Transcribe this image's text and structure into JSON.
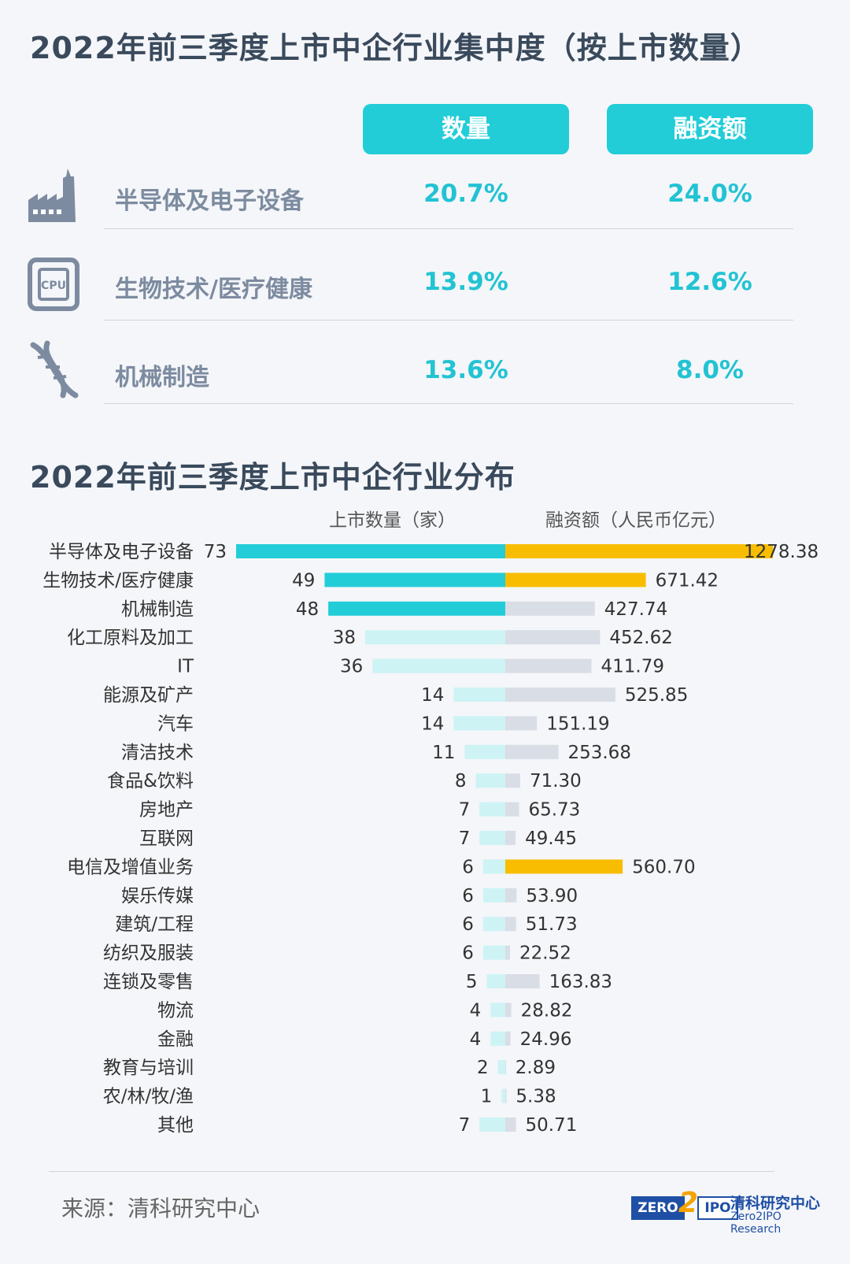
{
  "title1": "2022年前三季度上市中企行业集中度（按上市数量）",
  "title2": "2022年前三季度上市中企行业分布",
  "summary": {
    "head_count": "数量",
    "head_financing": "融资额",
    "rows": [
      {
        "icon": "factory-icon",
        "name": "半导体及电子设备",
        "count_pct": "20.7%",
        "financing_pct": "24.0%"
      },
      {
        "icon": "cpu-chip-icon",
        "name": "生物技术/医疗健康",
        "count_pct": "13.9%",
        "financing_pct": "12.6%"
      },
      {
        "icon": "dna-icon",
        "name": "机械制造",
        "count_pct": "13.6%",
        "financing_pct": "8.0%"
      }
    ]
  },
  "colors": {
    "teal": "#22cdd8",
    "light_teal": "#cdf3f5",
    "gold": "#f8bd00",
    "gray": "#d9dde5",
    "title": "#3a4a5c"
  },
  "chart_data": {
    "type": "bar",
    "layout": "back-to-back horizontal",
    "left_header": "上市数量（家）",
    "right_header": "融资额（人民币亿元）",
    "categories": [
      "半导体及电子设备",
      "生物技术/医疗健康",
      "机械制造",
      "化工原料及加工",
      "IT",
      "能源及矿产",
      "汽车",
      "清洁技术",
      "食品&饮料",
      "房地产",
      "互联网",
      "电信及增值业务",
      "娱乐传媒",
      "建筑/工程",
      "纺织及服装",
      "连锁及零售",
      "物流",
      "金融",
      "教育与培训",
      "农/林/牧/渔",
      "其他"
    ],
    "series": [
      {
        "name": "上市数量（家）",
        "values": [
          73,
          49,
          48,
          38,
          36,
          14,
          14,
          11,
          8,
          7,
          7,
          6,
          6,
          6,
          6,
          5,
          4,
          4,
          2,
          1,
          7
        ],
        "labels": [
          "73",
          "49",
          "48",
          "38",
          "36",
          "14",
          "14",
          "11",
          "8",
          "7",
          "7",
          "6",
          "6",
          "6",
          "6",
          "5",
          "4",
          "4",
          "2",
          "1",
          "7"
        ]
      },
      {
        "name": "融资额（人民币亿元）",
        "values": [
          1278.38,
          671.42,
          427.74,
          452.62,
          411.79,
          525.85,
          151.19,
          253.68,
          71.3,
          65.73,
          49.45,
          560.7,
          53.9,
          51.73,
          22.52,
          163.83,
          28.82,
          24.96,
          2.89,
          5.38,
          50.71
        ],
        "labels": [
          "1278.38",
          "671.42",
          "427.74",
          "452.62",
          "411.79",
          "525.85",
          "151.19",
          "253.68",
          "71.30",
          "65.73",
          "49.45",
          "560.70",
          "53.90",
          "51.73",
          "22.52",
          "163.83",
          "28.82",
          "24.96",
          "2.89",
          "5.38",
          "50.71"
        ]
      }
    ],
    "highlight_count": [
      true,
      true,
      true,
      false,
      false,
      false,
      false,
      false,
      false,
      false,
      false,
      false,
      false,
      false,
      false,
      false,
      false,
      false,
      false,
      false,
      false
    ],
    "highlight_financing": [
      true,
      true,
      false,
      false,
      false,
      false,
      false,
      false,
      false,
      false,
      false,
      true,
      false,
      false,
      false,
      false,
      false,
      false,
      false,
      false,
      false
    ]
  },
  "footer": {
    "source": "来源：清科研究中心",
    "logo_zero": "ZERO",
    "logo_two": "2",
    "logo_ipo": "IPO",
    "logo_cn": "清科研究中心",
    "logo_en": "Zero2IPO Research"
  }
}
